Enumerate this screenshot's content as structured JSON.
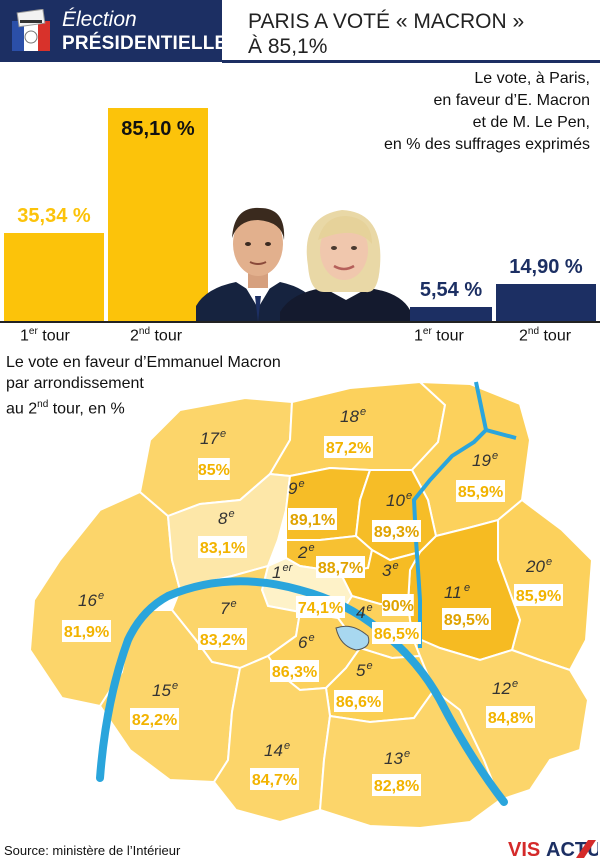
{
  "header": {
    "section_line1": "Élection",
    "section_line2": "PRÉSIDENTIELLE",
    "headline_line1": "PARIS A VOTÉ « MACRON »",
    "headline_line2": "À 85,1%"
  },
  "bars_caption": {
    "line1": "Le vote, à Paris,",
    "line2": "en faveur d’E. Macron",
    "line3": "et de M. Le Pen,",
    "line4": "en % des suffrages exprimés"
  },
  "tour_labels": {
    "first_num": "1",
    "first_sup": "er",
    "first_word": " tour",
    "second_num": "2",
    "second_sup": "nd",
    "second_word": " tour"
  },
  "colors": {
    "macron": "#fcc30a",
    "lepen": "#1c2f63",
    "seine": "#2aa5dc",
    "header_blue": "#1c2f63"
  },
  "map_caption": {
    "line1": "Le vote en faveur d’Emmanuel Macron",
    "line2": "par arrondissement",
    "line3_pre": "au 2",
    "line3_sup": "nd",
    "line3_post": " tour, en %"
  },
  "source": "Source: ministère de l’Intérieur",
  "brand": "VISACTU",
  "chart_data": [
    {
      "type": "bar",
      "title": "",
      "categories": [
        "1er tour",
        "2nd tour"
      ],
      "series": [
        {
          "name": "E. Macron",
          "values": [
            35.34,
            85.1
          ],
          "labels": [
            "35,34 %",
            "85,10 %"
          ]
        },
        {
          "name": "M. Le Pen",
          "values": [
            5.54,
            14.9
          ],
          "labels": [
            "5,54 %",
            "14,90 %"
          ]
        }
      ],
      "ylim": [
        0,
        100
      ]
    },
    {
      "type": "heatmap",
      "title": "Le vote en faveur d’Emmanuel Macron par arrondissement au 2nd tour, en %",
      "districts": [
        {
          "num": "1",
          "sup": "er",
          "value": 74.1,
          "label": "74,1%"
        },
        {
          "num": "2",
          "sup": "e",
          "value": 88.7,
          "label": "88,7%"
        },
        {
          "num": "3",
          "sup": "e",
          "value": 90.0,
          "label": "90%"
        },
        {
          "num": "4",
          "sup": "e",
          "value": 86.5,
          "label": "86,5%"
        },
        {
          "num": "5",
          "sup": "e",
          "value": 86.6,
          "label": "86,6%"
        },
        {
          "num": "6",
          "sup": "e",
          "value": 86.3,
          "label": "86,3%"
        },
        {
          "num": "7",
          "sup": "e",
          "value": 83.2,
          "label": "83,2%"
        },
        {
          "num": "8",
          "sup": "e",
          "value": 83.1,
          "label": "83,1%"
        },
        {
          "num": "9",
          "sup": "e",
          "value": 89.1,
          "label": "89,1%"
        },
        {
          "num": "10",
          "sup": "e",
          "value": 89.3,
          "label": "89,3%"
        },
        {
          "num": "11",
          "sup": "e",
          "value": 89.5,
          "label": "89,5%"
        },
        {
          "num": "12",
          "sup": "e",
          "value": 84.8,
          "label": "84,8%"
        },
        {
          "num": "13",
          "sup": "e",
          "value": 82.8,
          "label": "82,8%"
        },
        {
          "num": "14",
          "sup": "e",
          "value": 84.7,
          "label": "84,7%"
        },
        {
          "num": "15",
          "sup": "e",
          "value": 82.2,
          "label": "82,2%"
        },
        {
          "num": "16",
          "sup": "e",
          "value": 81.9,
          "label": "81,9%"
        },
        {
          "num": "17",
          "sup": "e",
          "value": 85.0,
          "label": "85%"
        },
        {
          "num": "18",
          "sup": "e",
          "value": 87.2,
          "label": "87,2%"
        },
        {
          "num": "19",
          "sup": "e",
          "value": 85.9,
          "label": "85,9%"
        },
        {
          "num": "20",
          "sup": "e",
          "value": 85.9,
          "label": "85,9%"
        }
      ]
    }
  ]
}
